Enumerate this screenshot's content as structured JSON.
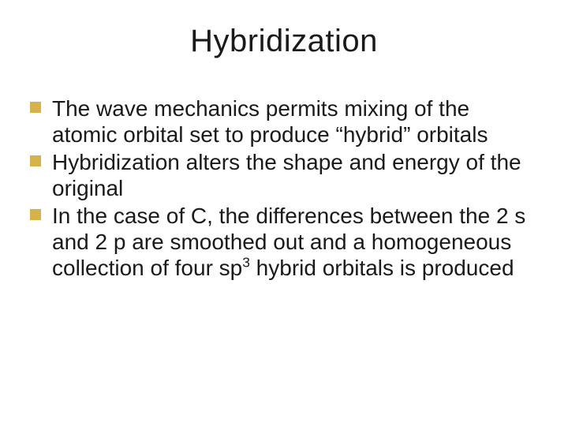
{
  "title": "Hybridization",
  "bullet_marker_color": "#d6b24a",
  "text_color": "#1a1a1a",
  "background_color": "#ffffff",
  "title_fontsize": 40,
  "body_fontsize": 28,
  "bullets": [
    {
      "text_parts": [
        "The wave mechanics permits mixing of the atomic orbital set to produce “hybrid” orbitals"
      ]
    },
    {
      "text_parts": [
        "Hybridization alters the shape and energy of the original"
      ]
    },
    {
      "text_parts": [
        "In the case of C, the differences between the ",
        "2 s",
        " and ",
        "2 p",
        " are smoothed out and a homogeneous collection of four sp",
        {
          "sup": "3"
        },
        " hybrid orbitals is produced"
      ]
    }
  ]
}
